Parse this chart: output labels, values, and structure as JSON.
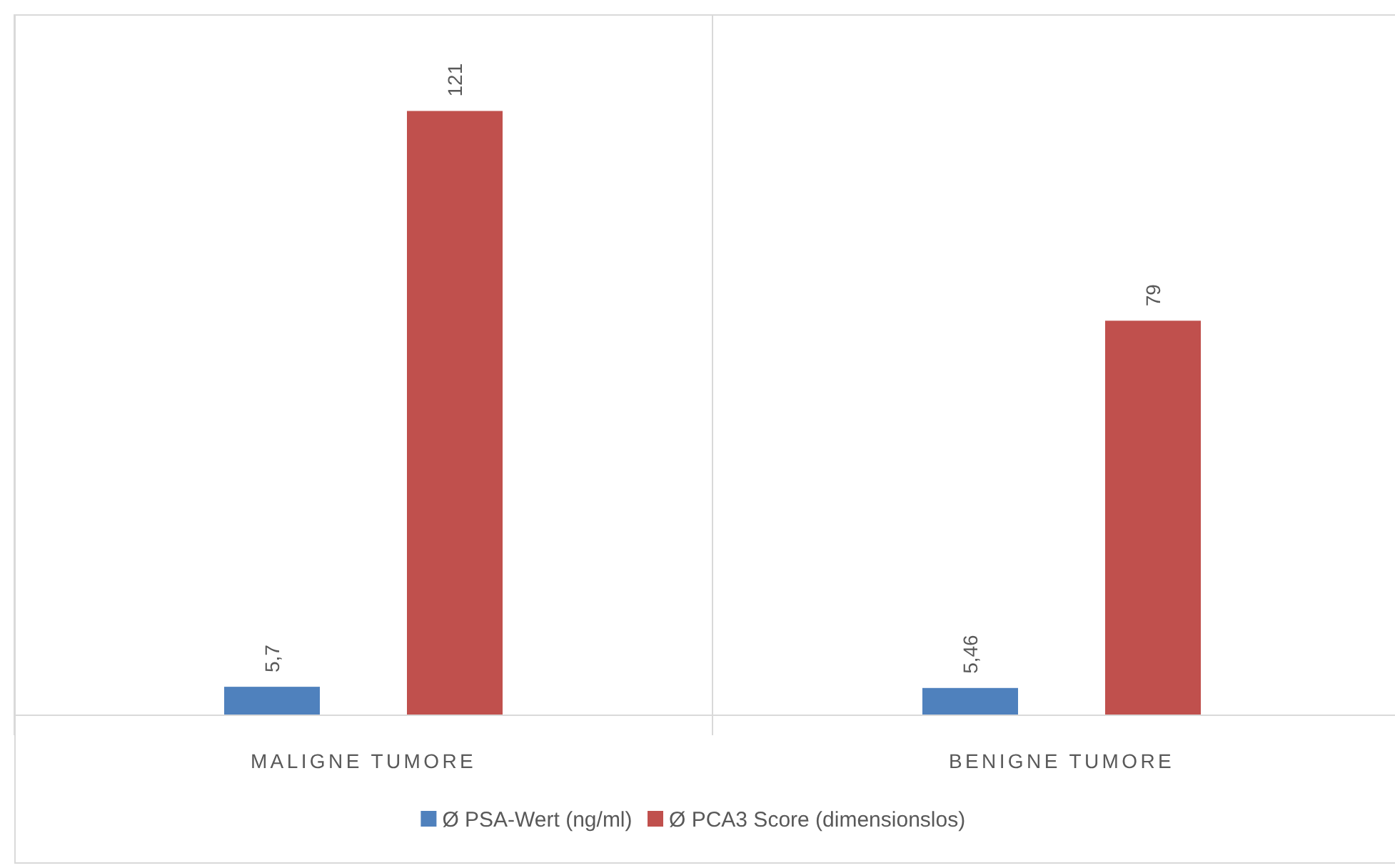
{
  "chart_data": {
    "type": "bar",
    "categories": [
      "MALIGNE TUMORE",
      "BENIGNE TUMORE"
    ],
    "series": [
      {
        "name": "Ø PSA-Wert (ng/ml)",
        "color": "#4f81bd",
        "values": [
          5.7,
          5.46
        ],
        "value_labels": [
          "5,7",
          "5,46"
        ]
      },
      {
        "name": "Ø PCA3 Score (dimensionslos)",
        "color": "#c0504d",
        "values": [
          121,
          79
        ],
        "value_labels": [
          "121",
          "79"
        ]
      }
    ],
    "grid": "x",
    "legend": "bottom"
  }
}
